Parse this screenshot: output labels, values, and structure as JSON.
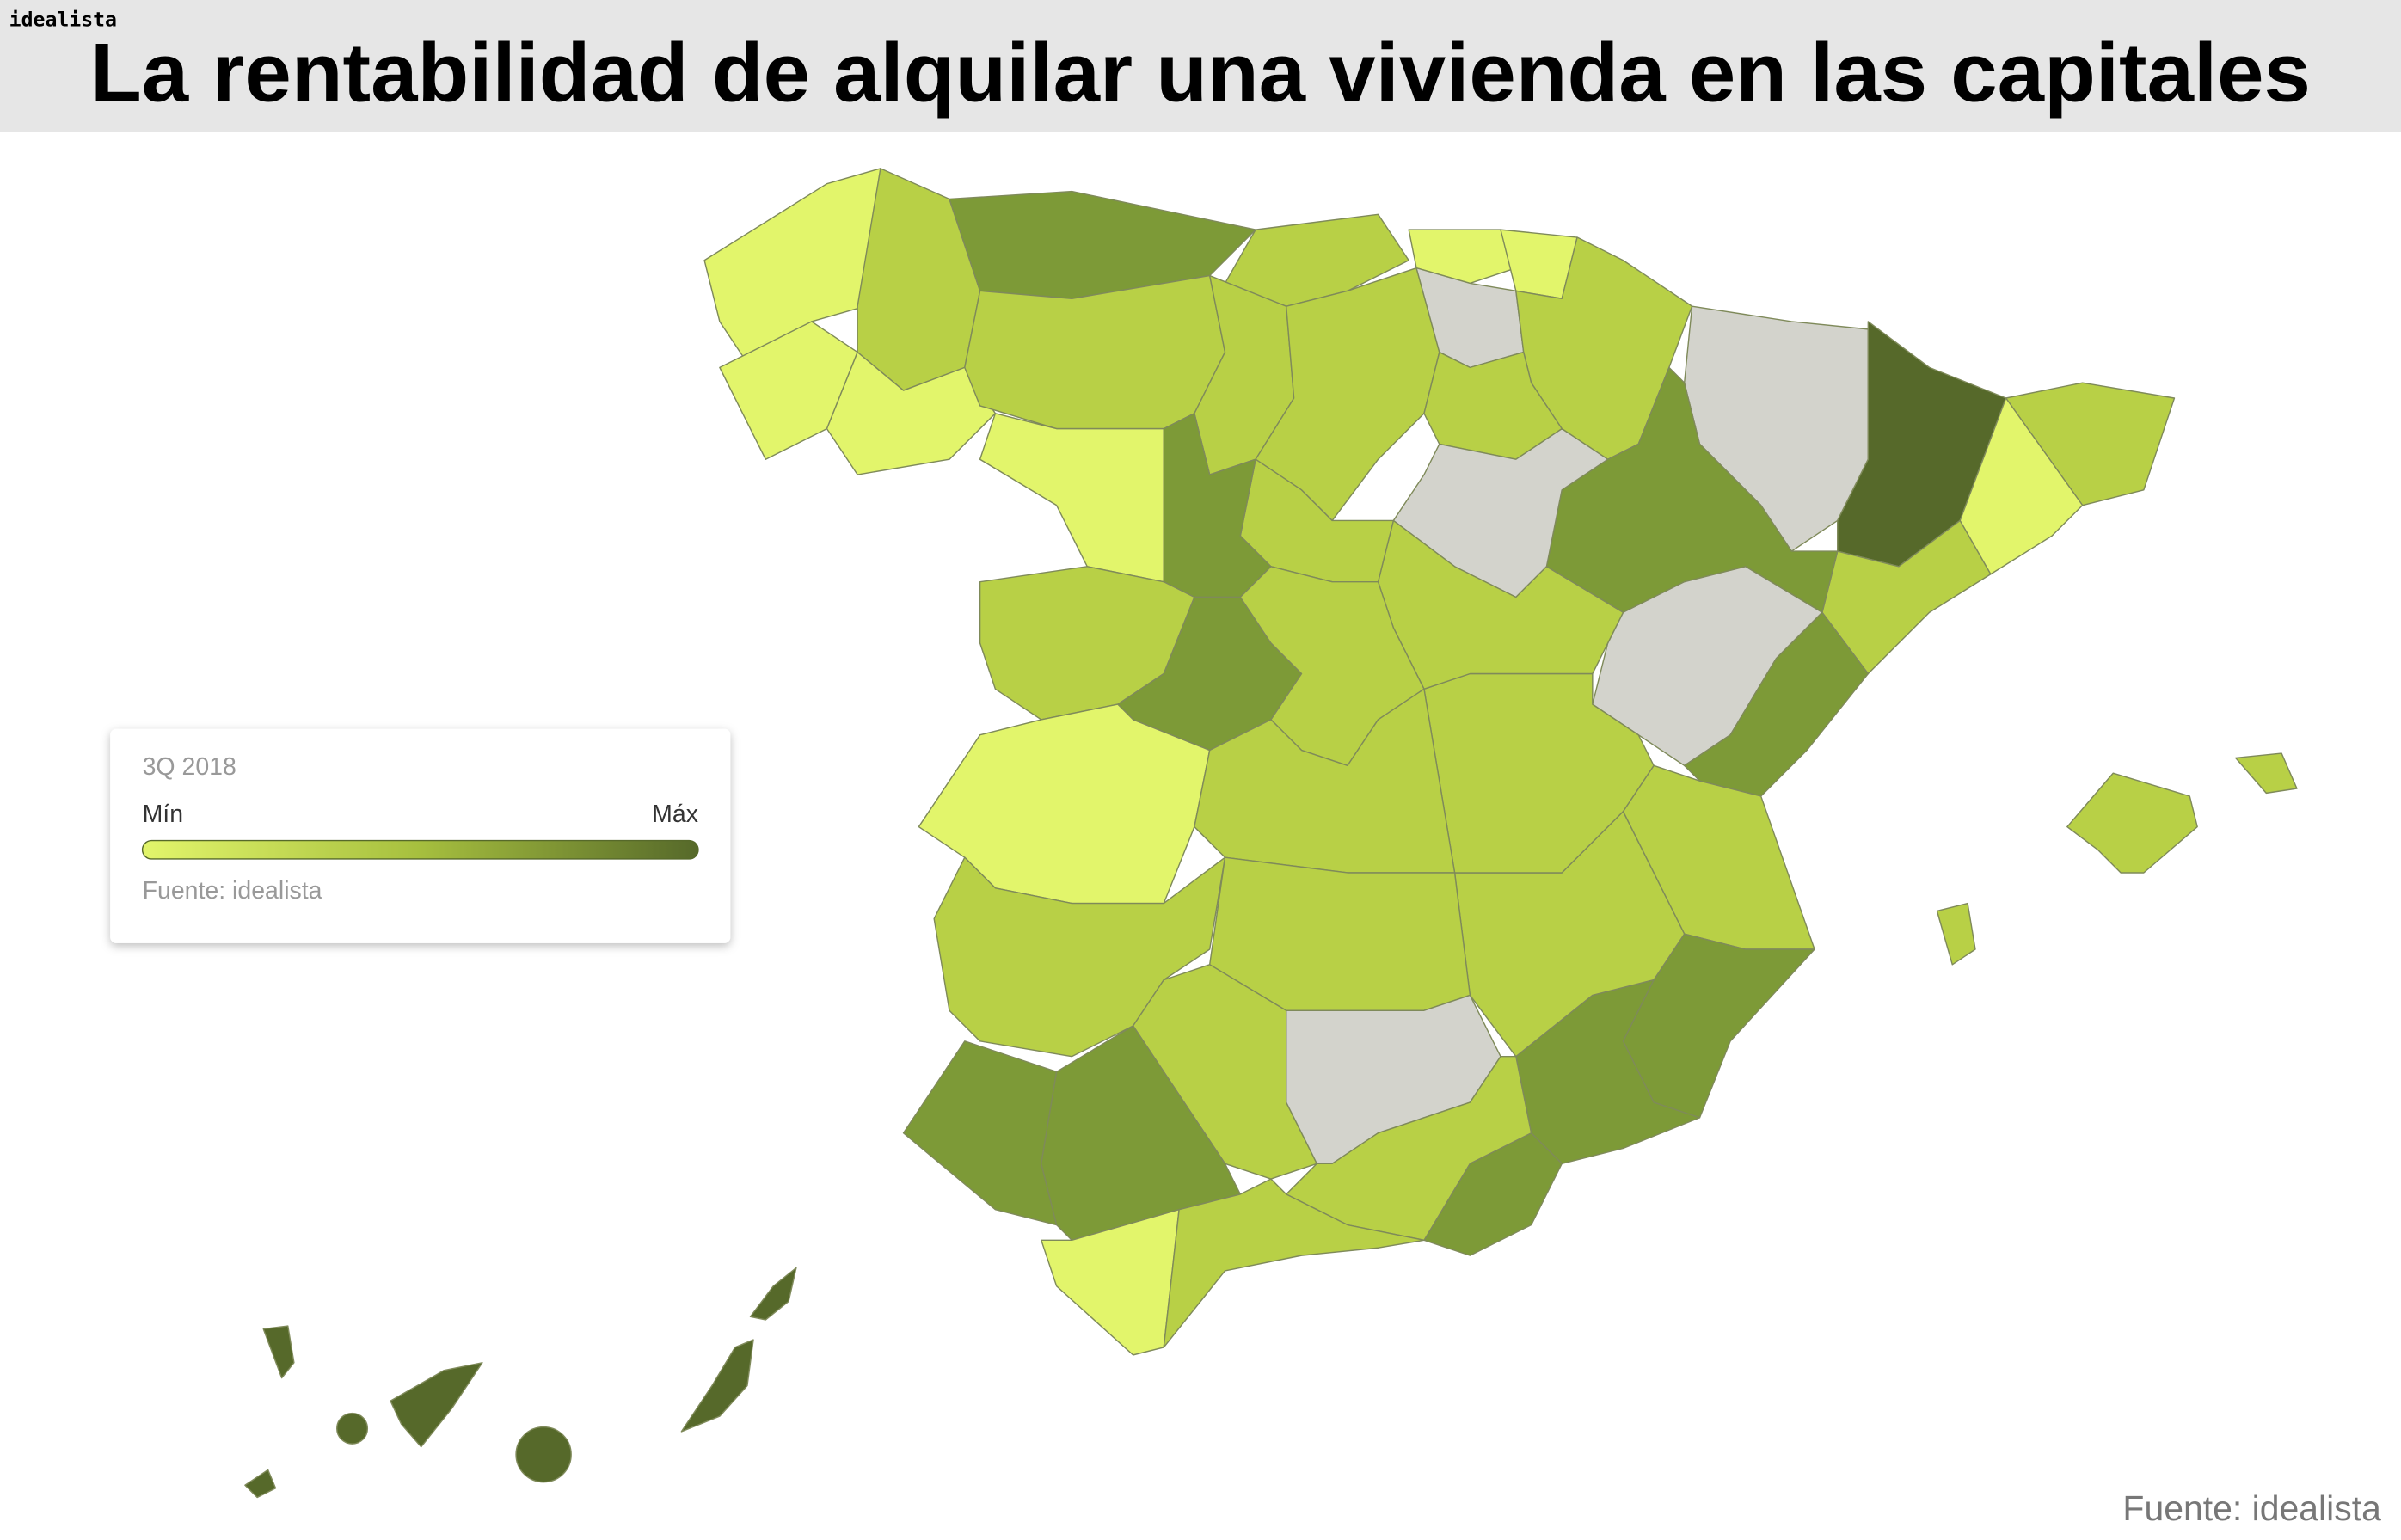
{
  "header": {
    "brand": "idealista",
    "title": "La rentabilidad de alquilar una vivienda en las capitales"
  },
  "legend": {
    "period": "3Q 2018",
    "min": "Mín",
    "max": "Máx",
    "source": "Fuente: idealista"
  },
  "footer": {
    "source": "Fuente: idealista"
  }
}
